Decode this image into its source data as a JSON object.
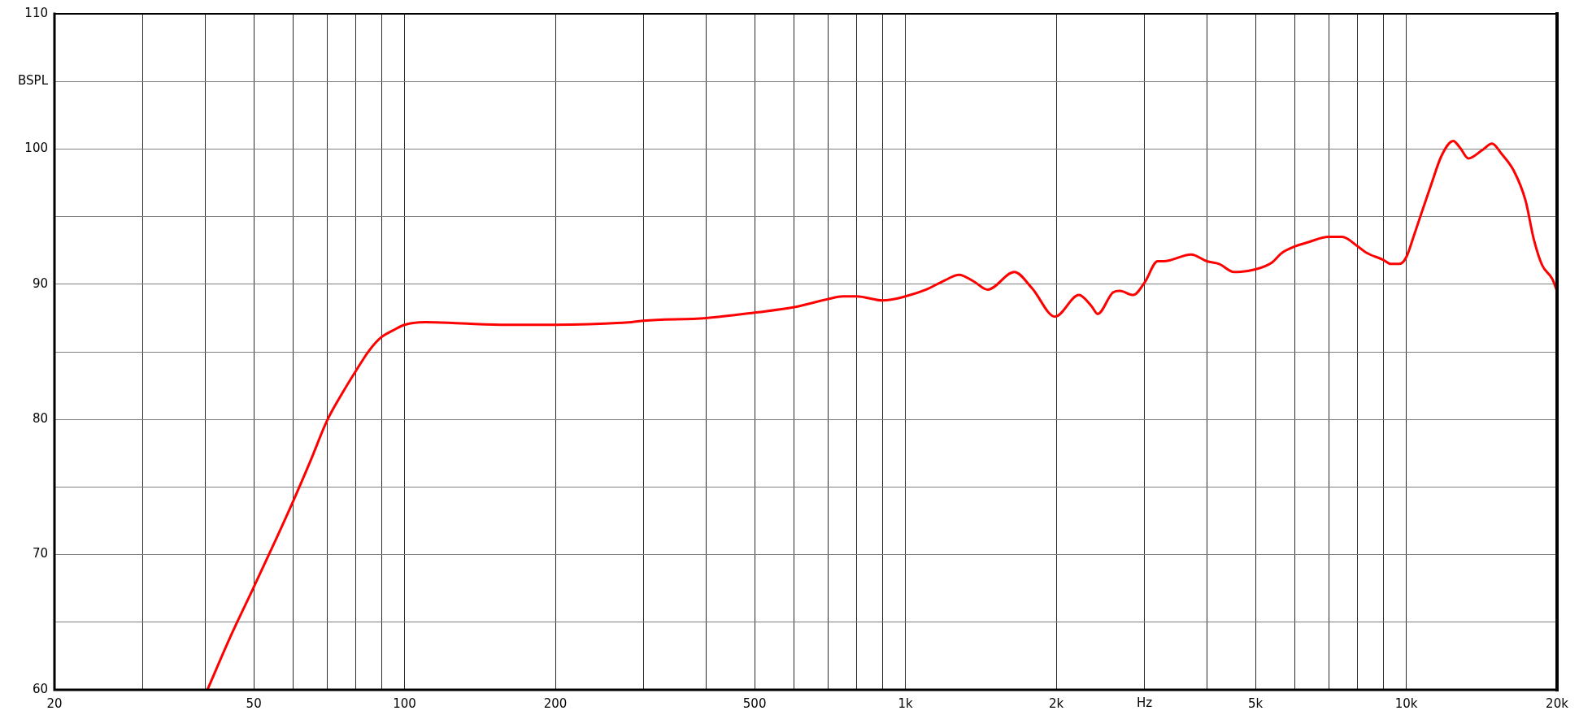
{
  "chart_data": {
    "type": "line",
    "xlabel": "Hz",
    "ylabel": "BSPL",
    "log": "x",
    "xlim": [
      20,
      20000
    ],
    "ylim": [
      60,
      110
    ],
    "xticks": [
      20,
      {
        "value": 30,
        "label": null
      },
      {
        "value": 40,
        "label": null
      },
      50,
      {
        "value": 60,
        "label": null
      },
      {
        "value": 70,
        "label": null
      },
      {
        "value": 80,
        "label": null
      },
      {
        "value": 90,
        "label": null
      },
      100,
      200,
      {
        "value": 300,
        "label": null
      },
      {
        "value": 400,
        "label": null
      },
      500,
      {
        "value": 600,
        "label": null
      },
      {
        "value": 700,
        "label": null
      },
      {
        "value": 800,
        "label": null
      },
      {
        "value": 900,
        "label": null
      },
      {
        "value": 1000,
        "label": "1k"
      },
      {
        "value": 2000,
        "label": "2k"
      },
      {
        "value": 3000,
        "label": null
      },
      {
        "value": 4000,
        "label": null
      },
      {
        "value": 5000,
        "label": "5k"
      },
      {
        "value": 6000,
        "label": null
      },
      {
        "value": 7000,
        "label": null
      },
      {
        "value": 8000,
        "label": null
      },
      {
        "value": 9000,
        "label": null
      },
      {
        "value": 10000,
        "label": "10k"
      },
      {
        "value": 20000,
        "label": "20k"
      }
    ],
    "yticks": [
      60,
      {
        "value": 65,
        "label": null
      },
      70,
      {
        "value": 75,
        "label": null
      },
      80,
      {
        "value": 85,
        "label": null
      },
      90,
      {
        "value": 95,
        "label": null
      },
      100,
      {
        "value": 105,
        "label": null
      },
      110
    ],
    "grid": true,
    "color": "#ff0000",
    "x": [
      40.4,
      45,
      50,
      55,
      60,
      65,
      70,
      75,
      80,
      85,
      90,
      95,
      100,
      110,
      130,
      160,
      200,
      284,
      300,
      400,
      500,
      600,
      700,
      750,
      800,
      900,
      1000,
      1100,
      1200,
      1280,
      1370,
      1460,
      1650,
      1790,
      1990,
      2220,
      2350,
      2420,
      2600,
      2680,
      2850,
      3000,
      3190,
      3280,
      3720,
      4000,
      4230,
      4530,
      5000,
      5390,
      5640,
      6000,
      6360,
      7000,
      7450,
      8000,
      8350,
      9000,
      9300,
      9700,
      10000,
      10380,
      10710,
      11220,
      11760,
      12410,
      12800,
      13310,
      14160,
      14830,
      15530,
      16390,
      17300,
      17980,
      18680,
      19560,
      20000
    ],
    "values": [
      60,
      64.0,
      67.6,
      70.9,
      74.0,
      77.0,
      79.9,
      81.9,
      83.6,
      85.1,
      86.1,
      86.6,
      87.0,
      87.2,
      87.1,
      87.0,
      87.0,
      87.2,
      87.3,
      87.5,
      87.9,
      88.3,
      88.9,
      89.1,
      89.1,
      88.8,
      89.1,
      89.6,
      90.3,
      90.7,
      90.2,
      89.6,
      90.9,
      89.7,
      87.6,
      89.2,
      88.4,
      87.8,
      89.4,
      89.5,
      89.2,
      90.1,
      91.7,
      91.7,
      92.2,
      91.7,
      91.5,
      90.9,
      91.1,
      91.6,
      92.3,
      92.8,
      93.1,
      93.5,
      93.5,
      92.8,
      92.3,
      91.8,
      91.5,
      91.5,
      92.0,
      93.7,
      95.2,
      97.4,
      99.5,
      100.6,
      100.1,
      99.3,
      99.9,
      100.4,
      99.6,
      98.4,
      96.2,
      93.3,
      91.4,
      90.4,
      89.5
    ]
  }
}
